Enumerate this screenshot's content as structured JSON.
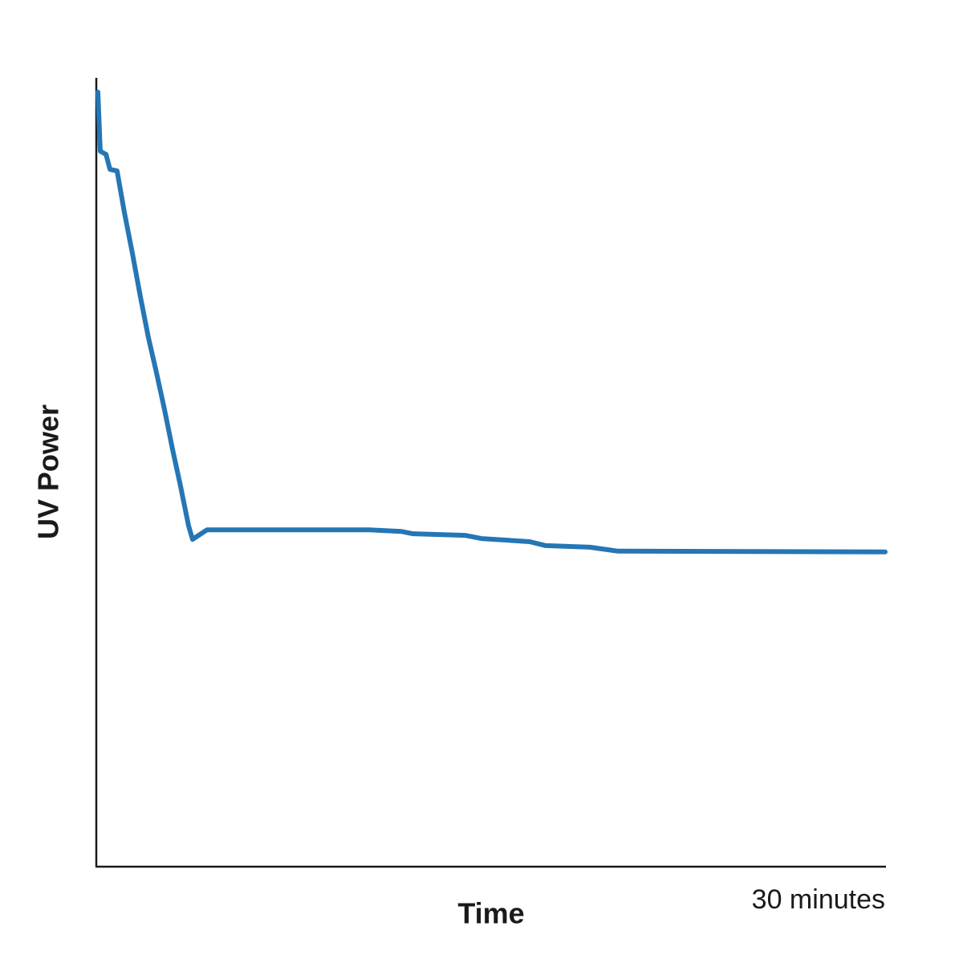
{
  "chart_data": {
    "type": "line",
    "x_label": "Time",
    "y_label": "UV Power",
    "x": [
      0.06,
      0.15,
      0.37,
      0.52,
      0.79,
      1.07,
      1.37,
      1.68,
      1.98,
      2.29,
      2.59,
      2.9,
      3.2,
      3.51,
      3.66,
      4.21,
      10.38,
      11.6,
      12.05,
      14.04,
      14.65,
      16.48,
      17.09,
      18.77,
      19.84,
      30
    ],
    "values": [
      98.2,
      90.7,
      90.3,
      88.4,
      88.2,
      82.9,
      77.8,
      72.2,
      67.1,
      62.6,
      58.0,
      52.9,
      48.3,
      43.2,
      41.5,
      42.7,
      42.7,
      42.5,
      42.2,
      42.0,
      41.6,
      41.2,
      40.7,
      40.5,
      40.0,
      39.9
    ],
    "color": "#2576b5",
    "xlim": [
      0,
      30
    ],
    "xticks": [
      {
        "value": 30,
        "label": "30 minutes"
      }
    ],
    "ylim": [
      0,
      100
    ]
  }
}
